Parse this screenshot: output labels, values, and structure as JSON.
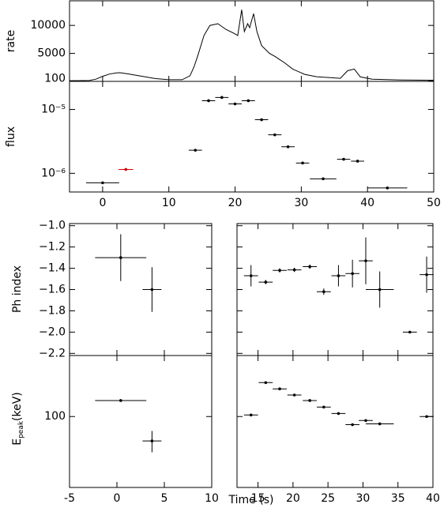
{
  "chart_data": [
    {
      "type": "line",
      "ylabel": "rate",
      "xlim": [
        -5,
        50
      ],
      "ylim": [
        0,
        14400
      ],
      "xticks": [
        0,
        10,
        20,
        30,
        40,
        50
      ],
      "yticks": [
        100,
        5000,
        10000
      ],
      "color": "#000000",
      "x": [
        -5,
        -2,
        -1,
        0,
        1,
        2,
        2.6,
        4,
        6,
        8,
        10,
        12,
        13.2,
        13.8,
        14.4,
        15.3,
        16.2,
        17.4,
        18.6,
        19.8,
        20.4,
        21,
        21.4,
        21.9,
        22.2,
        22.8,
        23.3,
        24,
        25.2,
        26.1,
        26.6,
        27.5,
        28.7,
        30.5,
        32.3,
        35.9,
        37,
        38,
        38.9,
        40.7,
        45,
        50
      ],
      "values": [
        100,
        150,
        400,
        900,
        1300,
        1500,
        1550,
        1300,
        900,
        500,
        300,
        300,
        1000,
        2600,
        4700,
        8200,
        10000,
        10300,
        9300,
        8600,
        8200,
        12800,
        8900,
        10300,
        9600,
        12100,
        8900,
        6400,
        5000,
        4400,
        4000,
        3300,
        2200,
        1250,
        830,
        550,
        1900,
        2200,
        800,
        400,
        250,
        200
      ]
    },
    {
      "type": "scatter",
      "ylabel": "flux",
      "log": true,
      "xlim": [
        -5,
        50
      ],
      "ylim": [
        5.1e-07,
        2.75e-05
      ],
      "xticks": [
        0,
        10,
        20,
        30,
        40,
        50
      ],
      "yticks": [
        {
          "value": 1e-05,
          "label": "10⁻⁵"
        },
        {
          "value": 1e-06,
          "label": "10⁻⁶"
        }
      ],
      "series": [
        {
          "color": "#000000",
          "x": [
            0,
            14,
            16,
            18,
            20,
            22,
            24,
            26,
            28,
            30.2,
            33.3,
            36.4,
            38.5,
            43
          ],
          "xerr": [
            2.5,
            1,
            1,
            1,
            1,
            1,
            1,
            1,
            1,
            1,
            2,
            1,
            1,
            3
          ],
          "values": [
            7.1e-07,
            2.3e-06,
            1.37e-05,
            1.54e-05,
            1.22e-05,
            1.37e-05,
            6.9e-06,
            4e-06,
            2.6e-06,
            1.45e-06,
            8.2e-07,
            1.66e-06,
            1.55e-06,
            5.9e-07
          ]
        },
        {
          "color": "#d40000",
          "x": [
            3.5
          ],
          "xerr": [
            1.1
          ],
          "values": [
            1.15e-06
          ]
        }
      ]
    },
    {
      "type": "scatter",
      "ylabel": "Ph index",
      "xlim": [
        -5,
        10
      ],
      "ylim": [
        -2.22,
        -0.98
      ],
      "xticks": [
        -5,
        0,
        5,
        10
      ],
      "yticks": [
        {
          "value": -1.0,
          "label": "−1.0"
        },
        {
          "value": -1.2,
          "label": "−1.2"
        },
        {
          "value": -1.4,
          "label": "−1.4"
        },
        {
          "value": -1.6,
          "label": "−1.6"
        },
        {
          "value": -1.8,
          "label": "−1.8"
        },
        {
          "value": -2.0,
          "label": "−2.0"
        },
        {
          "value": -2.2,
          "label": "−2.2"
        }
      ],
      "series": [
        {
          "color": "#000000",
          "x": [
            0.4,
            3.7
          ],
          "xerr": [
            2.7,
            1.0
          ],
          "values": [
            -1.3,
            -1.6
          ],
          "yerr": [
            0.22,
            0.21
          ]
        }
      ]
    },
    {
      "type": "scatter",
      "xlim": [
        12,
        40
      ],
      "ylim": [
        -2.22,
        -0.98
      ],
      "xticks": [
        15,
        20,
        25,
        30,
        35,
        40
      ],
      "yticks": [
        -1.0,
        -1.2,
        -1.4,
        -1.6,
        -1.8,
        -2.0,
        -2.2
      ],
      "series": [
        {
          "color": "#000000",
          "x": [
            14.0,
            16.1,
            18.1,
            20.2,
            22.4,
            24.4,
            26.5,
            28.5,
            30.4,
            32.4,
            36.7,
            39.1
          ],
          "xerr": [
            1,
            1,
            1,
            1,
            1,
            1,
            1,
            1,
            1,
            2,
            1,
            1
          ],
          "values": [
            -1.47,
            -1.53,
            -1.42,
            -1.415,
            -1.385,
            -1.62,
            -1.47,
            -1.45,
            -1.33,
            -1.6,
            -2.0,
            -1.46
          ],
          "yerr": [
            0.1,
            0.02,
            0.02,
            0.02,
            0.02,
            0.03,
            0.1,
            0.13,
            0.22,
            0.17,
            0.01,
            0.17
          ]
        }
      ]
    },
    {
      "type": "scatter",
      "ylabel": "E",
      "ylabel_sub": "peak",
      "ylabel_unit": "(keV)",
      "xlabel": "Time (s)",
      "log": true,
      "xlim": [
        -5,
        10
      ],
      "ylim": [
        40,
        220
      ],
      "xticks": [
        -5,
        0,
        5,
        10
      ],
      "yticks": [
        100
      ],
      "series": [
        {
          "color": "#000000",
          "x": [
            0.4,
            3.7
          ],
          "xerr": [
            2.7,
            1.0
          ],
          "values": [
            123,
            73
          ],
          "yerr": [
            1,
            10
          ]
        }
      ]
    },
    {
      "type": "scatter",
      "log": true,
      "xlim": [
        12,
        40
      ],
      "ylim": [
        40,
        220
      ],
      "xticks": [
        15,
        20,
        25,
        30,
        35,
        40
      ],
      "yticks": [
        100
      ],
      "series": [
        {
          "color": "#000000",
          "x": [
            14.0,
            16.1,
            18.1,
            20.2,
            22.4,
            24.4,
            26.5,
            28.5,
            30.4,
            32.4,
            39.1
          ],
          "xerr": [
            1,
            1,
            1,
            1,
            1,
            1,
            1,
            1,
            1,
            2,
            1
          ],
          "values": [
            102,
            155,
            143,
            132,
            123,
            113,
            104,
            90,
            95,
            91,
            100
          ],
          "yerr": [
            1,
            1,
            1,
            1,
            1,
            1,
            1,
            1,
            1,
            1,
            1
          ]
        }
      ]
    }
  ]
}
